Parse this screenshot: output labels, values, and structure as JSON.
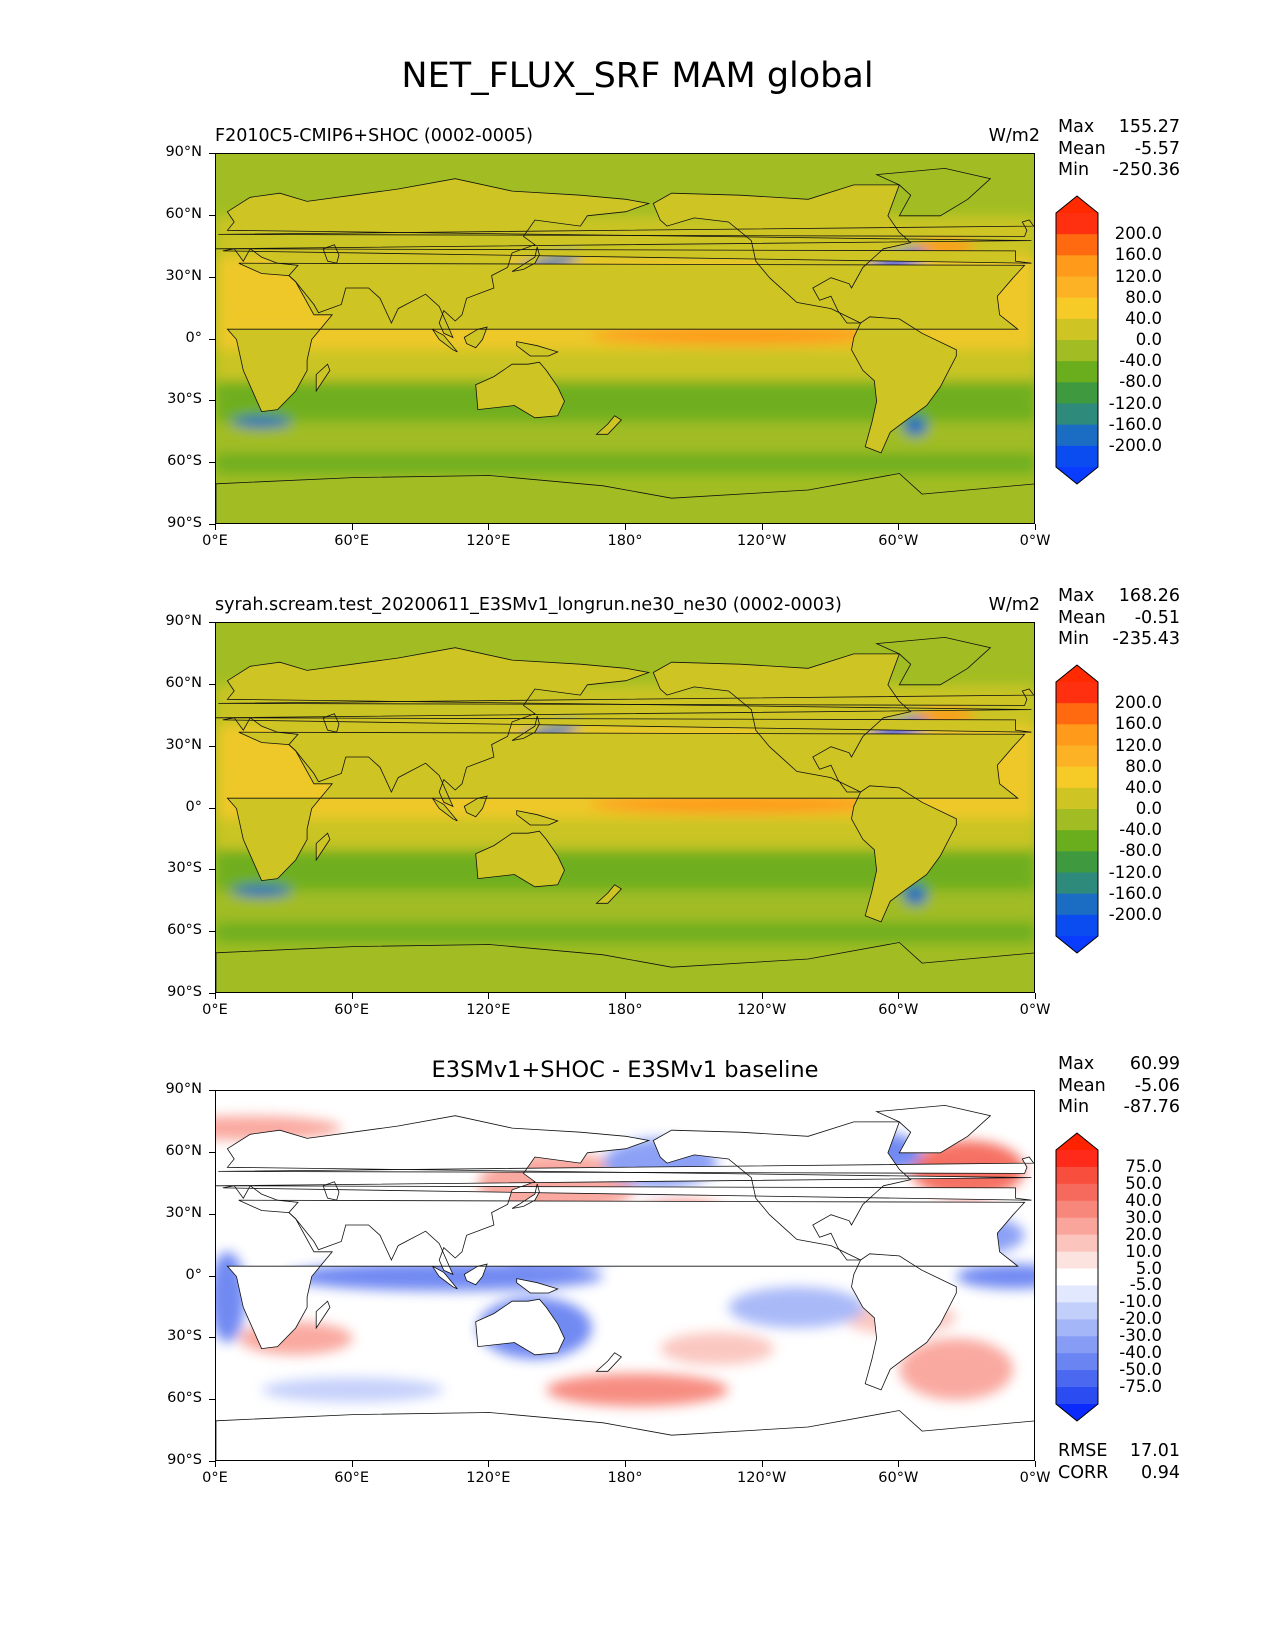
{
  "figure": {
    "title": "NET_FLUX_SRF MAM global"
  },
  "panels": [
    {
      "left_title": "F2010C5-CMIP6+SHOC (0002-0005)",
      "center_title": "",
      "units": "W/m2",
      "stats": {
        "max_label": "Max",
        "max": "155.27",
        "mean_label": "Mean",
        "mean": "-5.57",
        "min_label": "Min",
        "min": "-250.36"
      },
      "colorbar": {
        "levels": [
          "200.0",
          "160.0",
          "120.0",
          "80.0",
          "40.0",
          "0.0",
          "-40.0",
          "-80.0",
          "-120.0",
          "-160.0",
          "-200.0"
        ],
        "colors": [
          "#ff3010",
          "#ff6a10",
          "#ff9a1a",
          "#fdb225",
          "#f6ca27",
          "#cec525",
          "#a1bd23",
          "#6aae1d",
          "#3f9a3f",
          "#2e8a7a",
          "#1b6dc4",
          "#0a4cf0"
        ],
        "top_color": "#ff2a00",
        "bottom_color": "#0a3cff"
      }
    },
    {
      "left_title": "syrah.scream.test_20200611_E3SMv1_longrun.ne30_ne30 (0002-0003)",
      "center_title": "",
      "units": "W/m2",
      "stats": {
        "max_label": "Max",
        "max": "168.26",
        "mean_label": "Mean",
        "mean": "-0.51",
        "min_label": "Min",
        "min": "-235.43"
      },
      "colorbar": {
        "levels": [
          "200.0",
          "160.0",
          "120.0",
          "80.0",
          "40.0",
          "0.0",
          "-40.0",
          "-80.0",
          "-120.0",
          "-160.0",
          "-200.0"
        ],
        "colors": [
          "#ff3010",
          "#ff6a10",
          "#ff9a1a",
          "#fdb225",
          "#f6ca27",
          "#cec525",
          "#a1bd23",
          "#6aae1d",
          "#3f9a3f",
          "#2e8a7a",
          "#1b6dc4",
          "#0a4cf0"
        ],
        "top_color": "#ff2a00",
        "bottom_color": "#0a3cff"
      }
    },
    {
      "left_title": "",
      "center_title": "E3SMv1+SHOC - E3SMv1 baseline",
      "units": "",
      "stats": {
        "max_label": "Max",
        "max": "60.99",
        "mean_label": "Mean",
        "mean": "-5.06",
        "min_label": "Min",
        "min": "-87.76"
      },
      "footer": {
        "rmse_label": "RMSE",
        "rmse": "17.01",
        "corr_label": "CORR",
        "corr": "0.94"
      },
      "colorbar": {
        "levels": [
          "75.0",
          "50.0",
          "40.0",
          "30.0",
          "20.0",
          "10.0",
          "5.0",
          "-5.0",
          "-10.0",
          "-20.0",
          "-30.0",
          "-40.0",
          "-50.0",
          "-75.0"
        ],
        "colors": [
          "#ff2a1a",
          "#f74e3e",
          "#f56a5c",
          "#f7877b",
          "#f9a59b",
          "#fbc4bd",
          "#fde3df",
          "#ffffff",
          "#e2e8fd",
          "#c3cffb",
          "#a5b6f8",
          "#869cf5",
          "#6a84f2",
          "#4a68f0",
          "#2a4cf0"
        ],
        "top_color": "#ff2200",
        "bottom_color": "#0a2aff"
      }
    }
  ],
  "axes": {
    "yticks": [
      "90°N",
      "60°N",
      "30°N",
      "0°",
      "30°S",
      "60°S",
      "90°S"
    ],
    "xticks": [
      "0°E",
      "60°E",
      "120°E",
      "180°",
      "120°W",
      "60°W",
      "0°W"
    ]
  },
  "chart_data": [
    {
      "type": "heatmap",
      "title": "F2010C5-CMIP6+SHOC (0002-0005)",
      "units": "W/m2",
      "projection": "cylindrical (lon 0°E to 360°, lat 90°S to 90°N)",
      "x": [
        "0°E",
        "60°E",
        "120°E",
        "180°",
        "120°W",
        "60°W",
        "0°W"
      ],
      "y": [
        "90°N",
        "60°N",
        "30°N",
        "0°",
        "30°S",
        "60°S",
        "90°S"
      ],
      "levels": [
        -200,
        -160,
        -120,
        -80,
        -40,
        0,
        40,
        80,
        120,
        160,
        200
      ],
      "max": 155.27,
      "mean": -5.57,
      "min": -250.36
    },
    {
      "type": "heatmap",
      "title": "syrah.scream.test_20200611_E3SMv1_longrun.ne30_ne30 (0002-0003)",
      "units": "W/m2",
      "projection": "cylindrical (lon 0°E to 360°, lat 90°S to 90°N)",
      "x": [
        "0°E",
        "60°E",
        "120°E",
        "180°",
        "120°W",
        "60°W",
        "0°W"
      ],
      "y": [
        "90°N",
        "60°N",
        "30°N",
        "0°",
        "30°S",
        "60°S",
        "90°S"
      ],
      "levels": [
        -200,
        -160,
        -120,
        -80,
        -40,
        0,
        40,
        80,
        120,
        160,
        200
      ],
      "max": 168.26,
      "mean": -0.51,
      "min": -235.43
    },
    {
      "type": "heatmap",
      "title": "E3SMv1+SHOC - E3SMv1 baseline",
      "projection": "cylindrical (lon 0°E to 360°, lat 90°S to 90°N)",
      "x": [
        "0°E",
        "60°E",
        "120°E",
        "180°",
        "120°W",
        "60°W",
        "0°W"
      ],
      "y": [
        "90°N",
        "60°N",
        "30°N",
        "0°",
        "30°S",
        "60°S",
        "90°S"
      ],
      "levels": [
        -75,
        -50,
        -40,
        -30,
        -20,
        -10,
        -5,
        5,
        10,
        20,
        30,
        40,
        50,
        75
      ],
      "max": 60.99,
      "mean": -5.06,
      "min": -87.76,
      "rmse": 17.01,
      "corr": 0.94
    }
  ]
}
